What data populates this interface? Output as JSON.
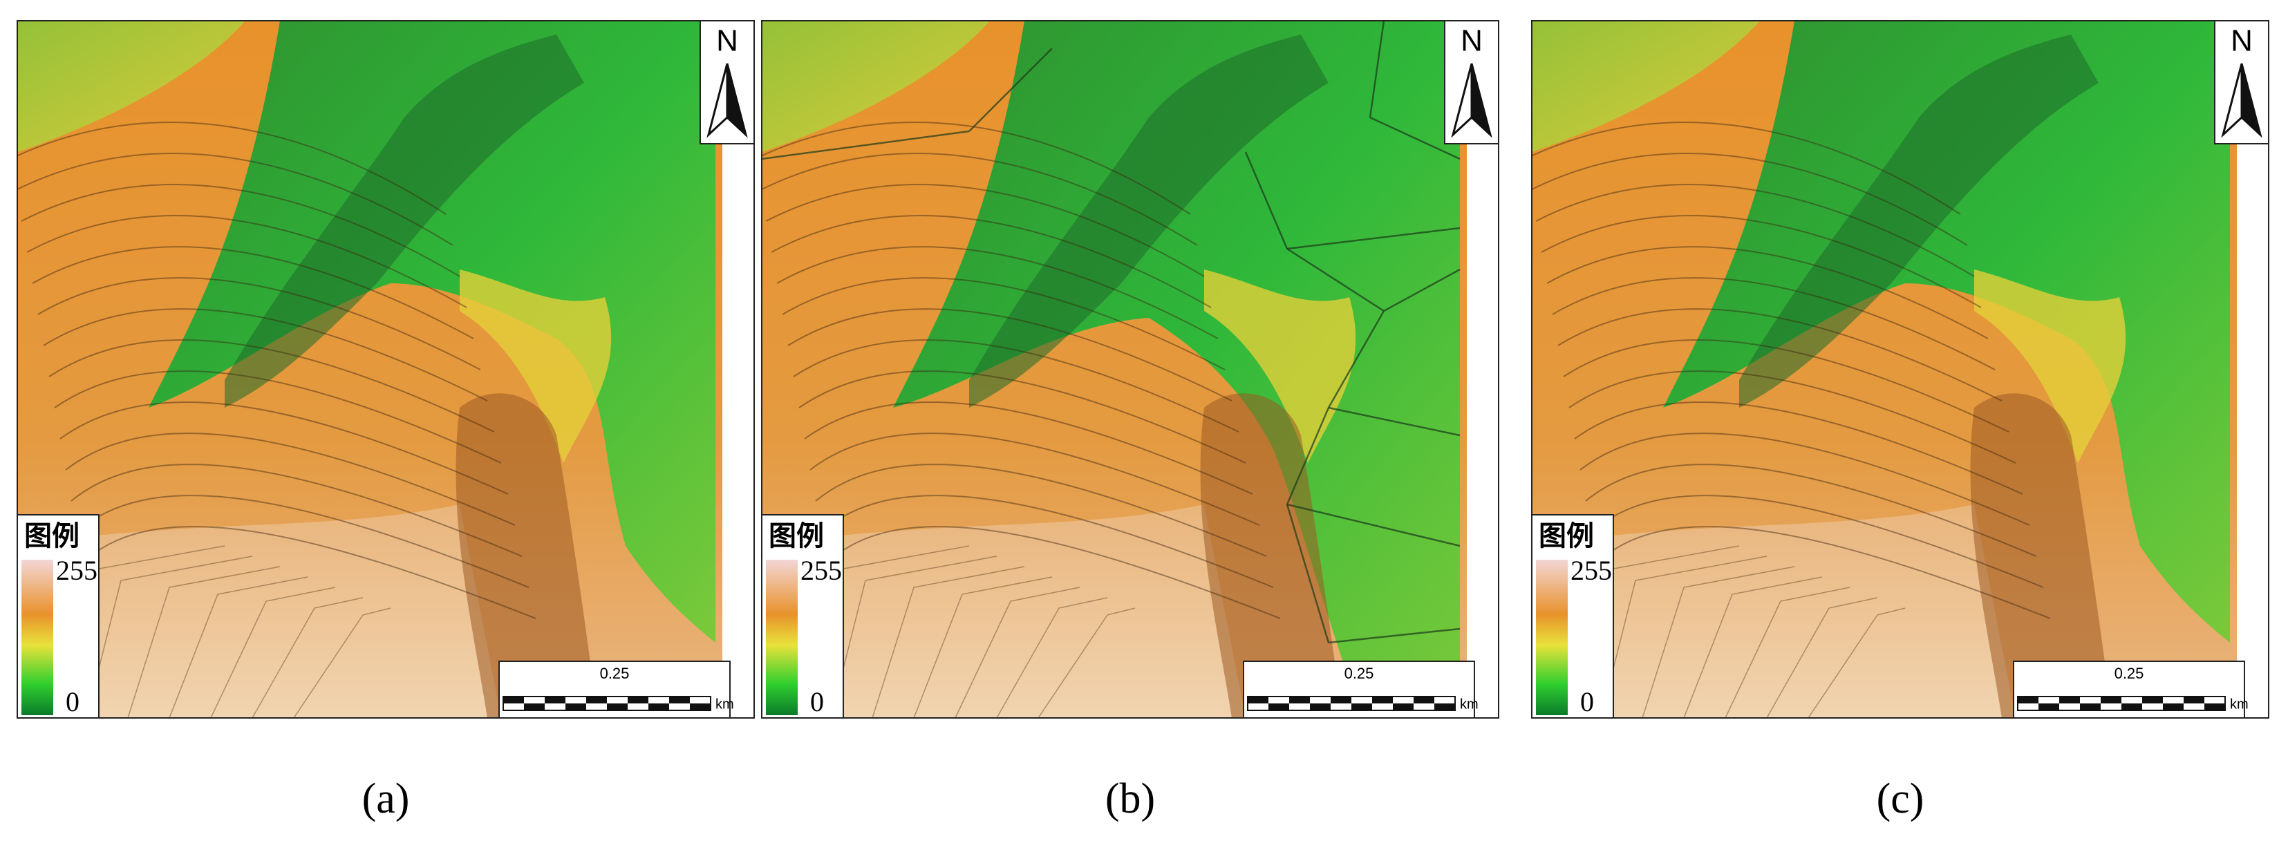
{
  "panels": [
    {
      "label": "(a)",
      "north": "N",
      "legend_title": "图例",
      "legend_max": 255,
      "legend_min": 0,
      "scale_label": 0.25,
      "scale_unit": "km"
    },
    {
      "label": "(b)",
      "north": "N",
      "legend_title": "图例",
      "legend_max": 255,
      "legend_min": 0,
      "scale_label": 0.25,
      "scale_unit": "km"
    },
    {
      "label": "(c)",
      "north": "N",
      "legend_title": "图例",
      "legend_max": 255,
      "legend_min": 0,
      "scale_label": 0.25,
      "scale_unit": "km"
    }
  ]
}
